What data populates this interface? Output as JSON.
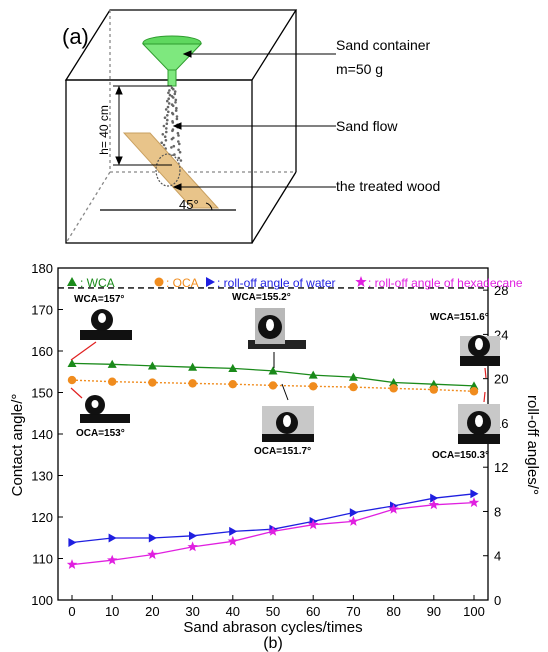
{
  "panel_a": {
    "label": "(a)",
    "sand_container_label": "Sand container",
    "mass_label": "m=50 g",
    "height_label": "h= 40 cm",
    "sand_flow_label": "Sand flow",
    "wood_label": "the treated wood",
    "angle_label": "45°"
  },
  "panel_b": {
    "label": "(b)"
  },
  "colors": {
    "wca": "#1a8a1a",
    "oca": "#f08c1e",
    "water": "#1f1fe0",
    "hexadecane": "#e020e0",
    "wood": "#e8c48a",
    "funnel": "#7ee87e"
  },
  "chart_data": {
    "type": "line",
    "xlabel": "Sand abrason cycles/times",
    "ylabel": "Contact angle/°",
    "y2label": "roll-off angles/°",
    "x": [
      0,
      10,
      20,
      30,
      40,
      50,
      60,
      70,
      80,
      90,
      100
    ],
    "xlim": [
      0,
      100
    ],
    "ylim": [
      100,
      180
    ],
    "y2lim": [
      0,
      30
    ],
    "xticks": [
      "0",
      "10",
      "20",
      "30",
      "40",
      "50",
      "60",
      "70",
      "80",
      "90",
      "100"
    ],
    "yticks": [
      "100",
      "110",
      "120",
      "130",
      "140",
      "150",
      "160",
      "170",
      "180"
    ],
    "y2ticks": [
      "0",
      "4",
      "8",
      "12",
      "16",
      "20",
      "24",
      "28"
    ],
    "reference_line_y2": 28.2,
    "legend": [
      {
        "key": "wca",
        "marker": "triangle",
        "text": ": WCA"
      },
      {
        "key": "oca",
        "marker": "circle",
        "text": ": OCA"
      },
      {
        "key": "water",
        "marker": "triangle-right",
        "text": ": roll-off angle of water"
      },
      {
        "key": "hexadecane",
        "marker": "star",
        "text": ": roll-off angle of hexadecane"
      }
    ],
    "series": [
      {
        "key": "wca",
        "axis": "left",
        "marker": "triangle",
        "dash": false,
        "values": [
          157,
          156.8,
          156.4,
          156.1,
          155.8,
          155.2,
          154.2,
          153.7,
          152.4,
          152.0,
          151.6
        ]
      },
      {
        "key": "oca",
        "axis": "left",
        "marker": "circle",
        "dash": true,
        "values": [
          153,
          152.6,
          152.4,
          152.2,
          152.0,
          151.7,
          151.5,
          151.3,
          151.0,
          150.7,
          150.3
        ]
      },
      {
        "key": "water",
        "axis": "right",
        "marker": "triangle-right",
        "dash": false,
        "values": [
          5.2,
          5.6,
          5.6,
          5.8,
          6.2,
          6.4,
          7.1,
          7.9,
          8.5,
          9.2,
          9.6
        ]
      },
      {
        "key": "hexadecane",
        "axis": "right",
        "marker": "star",
        "dash": false,
        "values": [
          3.2,
          3.6,
          4.1,
          4.8,
          5.3,
          6.2,
          6.8,
          7.1,
          8.2,
          8.6,
          8.8
        ]
      }
    ],
    "annotations": {
      "wca_0": "WCA=157°",
      "oca_0": "OCA=153°",
      "wca_50": "WCA=155.2°",
      "oca_50": "OCA=151.7°",
      "wca_100": "WCA=151.6°",
      "oca_100": "OCA=150.3°"
    }
  }
}
